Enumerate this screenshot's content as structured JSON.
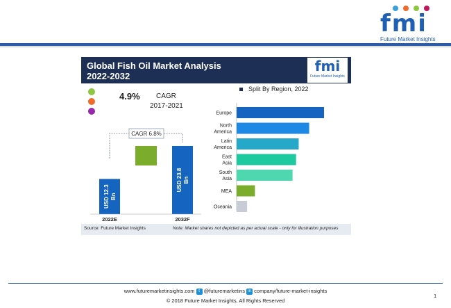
{
  "header": {
    "logo_text": "fmi",
    "logo_sub": "Future Market Insights",
    "logo_dot_colors": [
      "#3aa0d8",
      "#f06a2a",
      "#8dc63f",
      "#c2185b",
      "#2e7d32"
    ]
  },
  "panel": {
    "title_line1": "Global Fish Oil Market Analysis",
    "title_line2": "2022-2032",
    "logo_text": "fmi",
    "logo_sub": "Future Market Insights",
    "cagr_value": "4.9%",
    "cagr_label": "CAGR",
    "cagr_years": "2017-2021",
    "dot_colors": [
      "#8dc63f",
      "#f06a2a",
      "#9b27af"
    ],
    "legend_title": "Split By Region, 2022",
    "source": "Source: Future Market Insights",
    "note": "Note: Market shares not depicted as per actual scale - only for illustration purposes"
  },
  "chart_data": [
    {
      "type": "bar",
      "title": "",
      "categories": [
        "2022E",
        "2032F"
      ],
      "values": [
        12.3,
        23.8
      ],
      "value_labels": [
        "USD 12.3 Bn",
        "USD 23.8 Bn"
      ],
      "increment": 11.5,
      "increment_label": "CAGR 6.8%",
      "colors": {
        "bar": "#1565c0",
        "increment": "#7cac2c"
      }
    },
    {
      "type": "bar",
      "orientation": "horizontal",
      "title": "Split By Region, 2022",
      "categories": [
        "Europe",
        "North America",
        "Latin America",
        "East Asia",
        "South Asia",
        "MEA",
        "Oceania"
      ],
      "values": [
        100,
        83,
        71,
        68,
        64,
        21,
        12
      ],
      "value_scale": "relative (not to actual scale)",
      "colors": [
        "#1565c0",
        "#1e88e5",
        "#26a9c9",
        "#1ec9a0",
        "#4fd8b0",
        "#7cac2c",
        "#c7ccd6"
      ]
    }
  ],
  "footer": {
    "website": "www.futuremarketinsights.com",
    "twitter": "@futuremarketins",
    "linkedin": "company/future-market-insights",
    "copyright": "© 2018 Future Market Insights, All Rights Reserved",
    "page_number": "1"
  }
}
